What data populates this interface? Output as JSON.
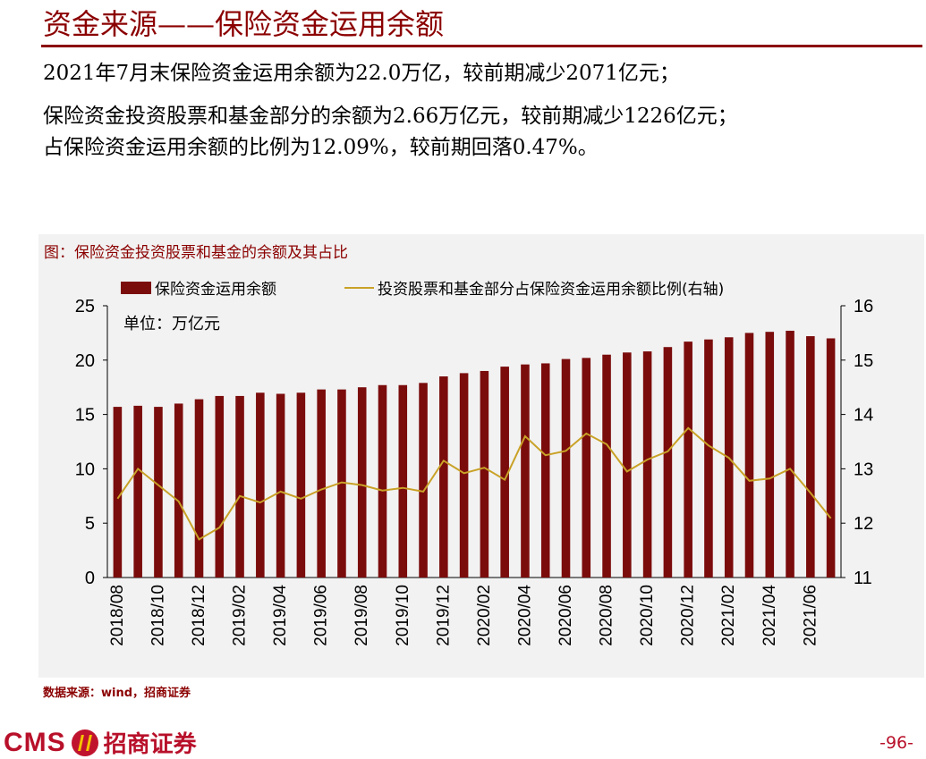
{
  "title": "资金来源——保险资金运用余额",
  "lines": [
    "2021年7月末保险资金运用余额为22.0万亿，较前期减少2071亿元；",
    "保险资金投资股票和基金部分的余额为2.66万亿元，较前期减少1226亿元；",
    "占保险资金运用余额的比例为12.09%，较前期回落0.47%。"
  ],
  "chart_caption": "图：保险资金投资股票和基金的余额及其占比",
  "source": "数据来源：wind，招商证券",
  "logo": {
    "cms": "CMS",
    "cn": "招商证券"
  },
  "page_number": "-96-",
  "colors": {
    "bar": "#7b0c0c",
    "line": "#c9a227",
    "accent": "#8b0000"
  },
  "chart_data": {
    "type": "bar",
    "unit_label": "单位：万亿元",
    "legend_position": "top",
    "grid": false,
    "categories": [
      "2018/08",
      "2018/09",
      "2018/10",
      "2018/11",
      "2018/12",
      "2019/01",
      "2019/02",
      "2019/03",
      "2019/04",
      "2019/05",
      "2019/06",
      "2019/07",
      "2019/08",
      "2019/09",
      "2019/10",
      "2019/11",
      "2019/12",
      "2020/01",
      "2020/02",
      "2020/03",
      "2020/04",
      "2020/05",
      "2020/06",
      "2020/07",
      "2020/08",
      "2020/09",
      "2020/10",
      "2020/11",
      "2020/12",
      "2021/01",
      "2021/02",
      "2021/03",
      "2021/04",
      "2021/05",
      "2021/06",
      "2021/07"
    ],
    "x_tick_labels": [
      "2018/08",
      "2018/10",
      "2018/12",
      "2019/02",
      "2019/04",
      "2019/06",
      "2019/08",
      "2019/10",
      "2019/12",
      "2020/02",
      "2020/04",
      "2020/06",
      "2020/08",
      "2020/10",
      "2020/12",
      "2021/02",
      "2021/04",
      "2021/06"
    ],
    "y_left": {
      "min": 0,
      "max": 25,
      "ticks": [
        0,
        5,
        10,
        15,
        20,
        25
      ]
    },
    "y_right": {
      "min": 11,
      "max": 16,
      "ticks": [
        11,
        12,
        13,
        14,
        15,
        16
      ]
    },
    "series": [
      {
        "name": "保险资金运用余额",
        "type": "bar",
        "axis": "left",
        "values": [
          15.7,
          15.8,
          15.7,
          16.0,
          16.4,
          16.7,
          16.7,
          17.0,
          16.9,
          17.0,
          17.3,
          17.3,
          17.5,
          17.7,
          17.7,
          17.9,
          18.5,
          18.8,
          19.0,
          19.4,
          19.6,
          19.7,
          20.1,
          20.2,
          20.5,
          20.7,
          20.8,
          21.2,
          21.7,
          21.9,
          22.1,
          22.5,
          22.6,
          22.7,
          22.2,
          22.0
        ]
      },
      {
        "name": "投资股票和基金部分占保险资金运用余额比例(右轴)",
        "type": "line",
        "axis": "right",
        "values": [
          12.45,
          13.0,
          12.7,
          12.4,
          11.7,
          11.92,
          12.5,
          12.38,
          12.58,
          12.45,
          12.62,
          12.75,
          12.7,
          12.6,
          12.65,
          12.58,
          13.15,
          12.92,
          13.02,
          12.8,
          13.6,
          13.25,
          13.33,
          13.65,
          13.45,
          12.95,
          13.17,
          13.32,
          13.75,
          13.43,
          13.2,
          12.78,
          12.82,
          13.0,
          12.56,
          12.09
        ]
      }
    ]
  }
}
